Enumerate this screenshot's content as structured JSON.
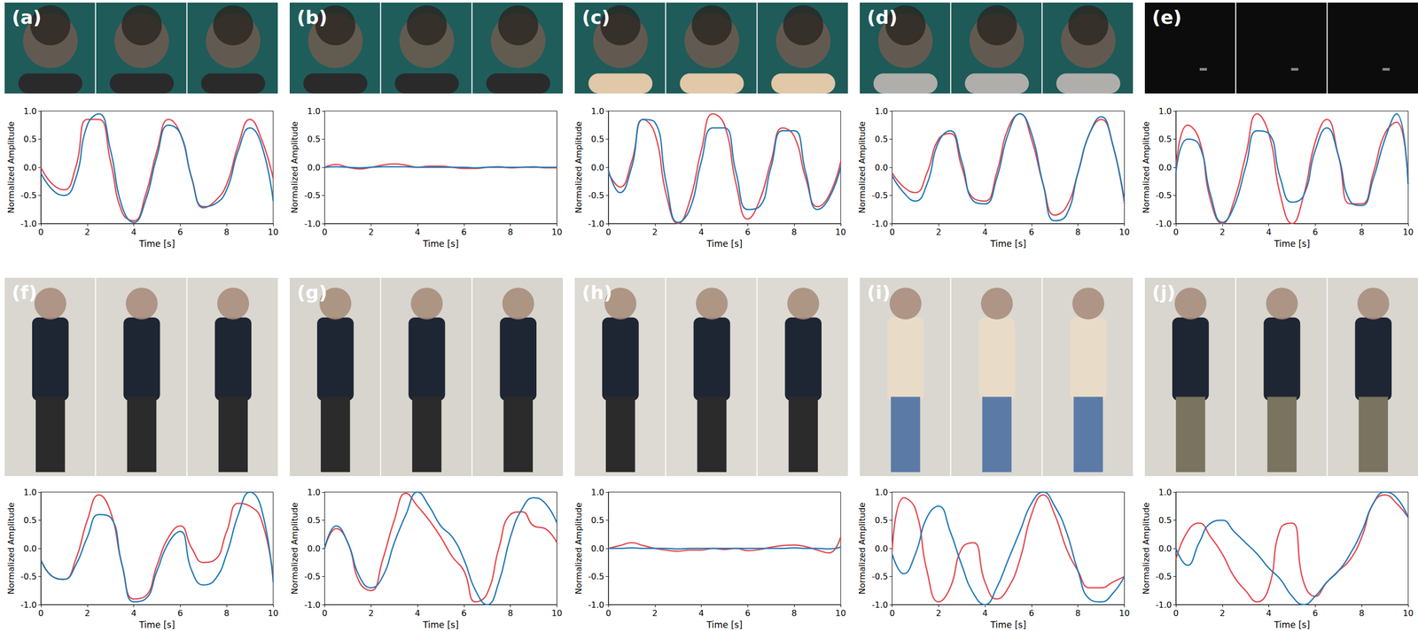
{
  "chart_data": [
    {
      "type": "line",
      "title": "(a)",
      "x_label": "Time [s]",
      "y_label": "Normalized Amplitude",
      "grid": false,
      "x": [
        0,
        0.5,
        1,
        1.5,
        2,
        2.5,
        3,
        3.5,
        4,
        4.5,
        5,
        5.5,
        6,
        6.5,
        7,
        7.5,
        8,
        8.5,
        9,
        9.5,
        10
      ],
      "xlim": [
        0,
        10
      ],
      "xticks": [
        0,
        2,
        4,
        6,
        8,
        10
      ],
      "ylim": [
        -1,
        1
      ],
      "yticks": [
        {
          "value": -1,
          "label": "-1.0"
        },
        {
          "value": -0.5,
          "label": "-0.5"
        },
        {
          "value": 0,
          "label": "0.0"
        },
        {
          "value": 0.5,
          "label": "0.5"
        },
        {
          "value": 1,
          "label": "1.0"
        }
      ],
      "series": [
        {
          "color": "#e4454b",
          "values": [
            0.0,
            -0.3,
            -0.4,
            0.0,
            0.85,
            0.85,
            0.1,
            -0.8,
            -0.95,
            -0.5,
            0.3,
            0.85,
            0.6,
            -0.2,
            -0.72,
            -0.6,
            -0.3,
            0.4,
            0.85,
            0.5,
            -0.2
          ]
        },
        {
          "color": "#1f77b4",
          "values": [
            -0.1,
            -0.4,
            -0.5,
            -0.2,
            0.75,
            0.95,
            0.3,
            -0.7,
            -0.98,
            -0.6,
            0.2,
            0.75,
            0.6,
            -0.2,
            -0.7,
            -0.65,
            -0.4,
            0.3,
            0.7,
            0.4,
            -0.6
          ]
        }
      ]
    },
    {
      "type": "line",
      "title": "(b)",
      "x_label": "Time [s]",
      "y_label": "Normalized Amplitude",
      "grid": false,
      "x": [
        0,
        0.5,
        1,
        1.5,
        2,
        2.5,
        3,
        3.5,
        4,
        4.5,
        5,
        5.5,
        6,
        6.5,
        7,
        7.5,
        8,
        8.5,
        9,
        9.5,
        10
      ],
      "xlim": [
        0,
        10
      ],
      "xticks": [
        0,
        2,
        4,
        6,
        8,
        10
      ],
      "ylim": [
        -1,
        1
      ],
      "yticks": [
        {
          "value": -1,
          "label": "-1.0"
        },
        {
          "value": -0.5,
          "label": "-0.5"
        },
        {
          "value": 0,
          "label": "0.0"
        },
        {
          "value": 0.5,
          "label": "0.5"
        },
        {
          "value": 1,
          "label": "1.0"
        }
      ],
      "series": [
        {
          "color": "#e4454b",
          "values": [
            0.0,
            0.05,
            0.0,
            -0.03,
            0.0,
            0.04,
            0.06,
            0.04,
            0.0,
            0.02,
            0.02,
            0.0,
            -0.02,
            -0.02,
            0.0,
            0.01,
            -0.01,
            0.0,
            0.01,
            -0.01,
            -0.01
          ]
        },
        {
          "color": "#1f77b4",
          "values": [
            0.0,
            0.01,
            0.0,
            -0.01,
            0.0,
            0.01,
            0.01,
            0.01,
            0.0,
            0.0,
            0.0,
            0.0,
            0.0,
            -0.01,
            0.0,
            0.0,
            0.0,
            0.0,
            0.0,
            0.0,
            0.0
          ]
        }
      ]
    },
    {
      "type": "line",
      "title": "(c)",
      "x_label": "Time [s]",
      "y_label": "Normalized Amplitude",
      "grid": false,
      "x": [
        0,
        0.5,
        1,
        1.5,
        2,
        2.5,
        3,
        3.5,
        4,
        4.5,
        5,
        5.5,
        6,
        6.5,
        7,
        7.5,
        8,
        8.5,
        9,
        9.5,
        10
      ],
      "xlim": [
        0,
        10
      ],
      "xticks": [
        0,
        2,
        4,
        6,
        8,
        10
      ],
      "ylim": [
        -1,
        1
      ],
      "yticks": [
        {
          "value": -1,
          "label": "-1.0"
        },
        {
          "value": -0.5,
          "label": "-0.5"
        },
        {
          "value": 0,
          "label": "0.0"
        },
        {
          "value": 0.5,
          "label": "0.5"
        },
        {
          "value": 1,
          "label": "1.0"
        }
      ],
      "series": [
        {
          "color": "#e4454b",
          "values": [
            -0.1,
            -0.35,
            0.1,
            0.85,
            0.6,
            -0.5,
            -1.0,
            -0.6,
            0.3,
            0.95,
            0.75,
            -0.3,
            -0.92,
            -0.6,
            0.1,
            0.7,
            0.55,
            -0.2,
            -0.7,
            -0.5,
            0.1
          ]
        },
        {
          "color": "#1f77b4",
          "values": [
            -0.05,
            -0.45,
            0.0,
            0.85,
            0.8,
            -0.3,
            -0.98,
            -0.75,
            0.1,
            0.7,
            0.7,
            -0.1,
            -0.75,
            -0.7,
            0.0,
            0.65,
            0.65,
            -0.1,
            -0.75,
            -0.55,
            0.0
          ]
        }
      ]
    },
    {
      "type": "line",
      "title": "(d)",
      "x_label": "Time [s]",
      "y_label": "Normalized Amplitude",
      "grid": false,
      "x": [
        0,
        0.5,
        1,
        1.5,
        2,
        2.5,
        3,
        3.5,
        4,
        4.5,
        5,
        5.5,
        6,
        6.5,
        7,
        7.5,
        8,
        8.5,
        9,
        9.5,
        10
      ],
      "xlim": [
        0,
        10
      ],
      "xticks": [
        0,
        2,
        4,
        6,
        8,
        10
      ],
      "ylim": [
        -1,
        1
      ],
      "yticks": [
        {
          "value": -1,
          "label": "-1.0"
        },
        {
          "value": -0.5,
          "label": "-0.5"
        },
        {
          "value": 0,
          "label": "0.0"
        },
        {
          "value": 0.5,
          "label": "0.5"
        },
        {
          "value": 1,
          "label": "1.0"
        }
      ],
      "series": [
        {
          "color": "#e4454b",
          "values": [
            -0.1,
            -0.35,
            -0.45,
            -0.1,
            0.5,
            0.6,
            0.0,
            -0.55,
            -0.6,
            -0.1,
            0.7,
            0.95,
            0.5,
            -0.3,
            -0.85,
            -0.7,
            -0.1,
            0.6,
            0.85,
            0.4,
            -0.65
          ]
        },
        {
          "color": "#1f77b4",
          "values": [
            -0.15,
            -0.45,
            -0.6,
            -0.3,
            0.45,
            0.65,
            0.1,
            -0.6,
            -0.65,
            -0.2,
            0.6,
            0.95,
            0.6,
            -0.3,
            -0.95,
            -0.85,
            -0.1,
            0.6,
            0.9,
            0.4,
            -0.6
          ]
        }
      ]
    },
    {
      "type": "line",
      "title": "(e)",
      "x_label": "Time [s]",
      "y_label": "Normalized Amplitude",
      "grid": false,
      "x": [
        0,
        0.5,
        1,
        1.5,
        2,
        2.5,
        3,
        3.5,
        4,
        4.5,
        5,
        5.5,
        6,
        6.5,
        7,
        7.5,
        8,
        8.5,
        9,
        9.5,
        10
      ],
      "xlim": [
        0,
        10
      ],
      "xticks": [
        0,
        2,
        4,
        6,
        8,
        10
      ],
      "ylim": [
        -1,
        1
      ],
      "yticks": [
        {
          "value": -1,
          "label": "-1.0"
        },
        {
          "value": -0.5,
          "label": "-0.5"
        },
        {
          "value": 0,
          "label": "0.0"
        },
        {
          "value": 0.5,
          "label": "0.5"
        },
        {
          "value": 1,
          "label": "1.0"
        }
      ],
      "series": [
        {
          "color": "#e4454b",
          "values": [
            0.0,
            0.75,
            0.5,
            -0.6,
            -1.0,
            -0.6,
            0.2,
            0.95,
            0.6,
            -0.5,
            -1.0,
            -0.5,
            0.45,
            0.85,
            0.2,
            -0.65,
            -0.65,
            -0.1,
            0.6,
            0.8,
            -0.3
          ]
        },
        {
          "color": "#1f77b4",
          "values": [
            -0.1,
            0.5,
            0.4,
            -0.5,
            -0.98,
            -0.7,
            0.0,
            0.65,
            0.6,
            -0.2,
            -0.62,
            -0.5,
            0.3,
            0.7,
            0.2,
            -0.6,
            -0.68,
            -0.2,
            0.5,
            0.95,
            -0.3
          ]
        }
      ]
    },
    {
      "type": "line",
      "title": "(f)",
      "x_label": "Time [s]",
      "y_label": "Normalized Amplitude",
      "grid": false,
      "x": [
        0,
        0.5,
        1,
        1.5,
        2,
        2.5,
        3,
        3.5,
        4,
        4.5,
        5,
        5.5,
        6,
        6.5,
        7,
        7.5,
        8,
        8.5,
        9,
        9.5,
        10
      ],
      "xlim": [
        0,
        10
      ],
      "xticks": [
        0,
        2,
        4,
        6,
        8,
        10
      ],
      "ylim": [
        -1,
        1
      ],
      "yticks": [
        {
          "value": -1,
          "label": "-1.0"
        },
        {
          "value": -0.5,
          "label": "-0.5"
        },
        {
          "value": 0,
          "label": "0.0"
        },
        {
          "value": 0.5,
          "label": "0.5"
        },
        {
          "value": 1,
          "label": "1.0"
        }
      ],
      "series": [
        {
          "color": "#e4454b",
          "values": [
            -0.2,
            -0.5,
            -0.55,
            -0.2,
            0.5,
            0.95,
            0.65,
            -0.3,
            -0.9,
            -0.85,
            -0.3,
            0.2,
            0.4,
            0.0,
            -0.25,
            -0.2,
            0.3,
            0.8,
            0.75,
            0.5,
            -0.5
          ]
        },
        {
          "color": "#1f77b4",
          "values": [
            -0.2,
            -0.5,
            -0.55,
            -0.3,
            0.2,
            0.6,
            0.55,
            -0.3,
            -0.95,
            -0.9,
            -0.4,
            0.1,
            0.3,
            -0.4,
            -0.65,
            -0.55,
            -0.1,
            0.6,
            1.0,
            0.7,
            -0.6
          ]
        }
      ]
    },
    {
      "type": "line",
      "title": "(g)",
      "x_label": "Time [s]",
      "y_label": "Normalized Amplitude",
      "grid": false,
      "x": [
        0,
        0.5,
        1,
        1.5,
        2,
        2.5,
        3,
        3.5,
        4,
        4.5,
        5,
        5.5,
        6,
        6.5,
        7,
        7.5,
        8,
        8.5,
        9,
        9.5,
        10
      ],
      "xlim": [
        0,
        10
      ],
      "xticks": [
        0,
        2,
        4,
        6,
        8,
        10
      ],
      "ylim": [
        -1,
        1
      ],
      "yticks": [
        {
          "value": -1,
          "label": "-1.0"
        },
        {
          "value": -0.5,
          "label": "-0.5"
        },
        {
          "value": 0,
          "label": "0.0"
        },
        {
          "value": 0.5,
          "label": "0.5"
        },
        {
          "value": 1,
          "label": "1.0"
        }
      ],
      "series": [
        {
          "color": "#e4454b",
          "values": [
            0.0,
            0.35,
            0.1,
            -0.6,
            -0.75,
            -0.2,
            0.5,
            0.98,
            0.75,
            0.5,
            0.2,
            -0.15,
            -0.4,
            -0.95,
            -0.8,
            0.0,
            0.6,
            0.65,
            0.4,
            0.35,
            0.1
          ]
        },
        {
          "color": "#1f77b4",
          "values": [
            0.0,
            0.4,
            0.1,
            -0.5,
            -0.7,
            -0.5,
            0.1,
            0.6,
            1.0,
            0.75,
            0.4,
            0.2,
            -0.2,
            -0.75,
            -1.0,
            -0.6,
            0.2,
            0.7,
            0.9,
            0.8,
            0.45
          ]
        }
      ]
    },
    {
      "type": "line",
      "title": "(h)",
      "x_label": "Time [s]",
      "y_label": "Normalized Amplitude",
      "grid": false,
      "x": [
        0,
        0.5,
        1,
        1.5,
        2,
        2.5,
        3,
        3.5,
        4,
        4.5,
        5,
        5.5,
        6,
        6.5,
        7,
        7.5,
        8,
        8.5,
        9,
        9.5,
        10
      ],
      "xlim": [
        0,
        10
      ],
      "xticks": [
        0,
        2,
        4,
        6,
        8,
        10
      ],
      "ylim": [
        -1,
        1
      ],
      "yticks": [
        {
          "value": -1,
          "label": "-1.0"
        },
        {
          "value": -0.5,
          "label": "-0.5"
        },
        {
          "value": 0,
          "label": "0.0"
        },
        {
          "value": 0.5,
          "label": "0.5"
        },
        {
          "value": 1,
          "label": "1.0"
        }
      ],
      "series": [
        {
          "color": "#e4454b",
          "values": [
            0.0,
            0.05,
            0.1,
            0.05,
            0.0,
            -0.03,
            -0.05,
            -0.03,
            -0.03,
            0.0,
            -0.02,
            0.0,
            -0.04,
            -0.02,
            0.02,
            0.05,
            0.06,
            0.03,
            -0.03,
            -0.08,
            0.2
          ]
        },
        {
          "color": "#1f77b4",
          "values": [
            0.0,
            0.0,
            0.01,
            0.0,
            0.0,
            0.0,
            -0.01,
            0.0,
            0.0,
            0.0,
            0.0,
            0.0,
            0.0,
            0.0,
            0.0,
            0.0,
            0.01,
            0.0,
            0.0,
            -0.01,
            0.02
          ]
        }
      ]
    },
    {
      "type": "line",
      "title": "(i)",
      "x_label": "Time [s]",
      "y_label": "Normalized Amplitude",
      "grid": false,
      "x": [
        0,
        0.5,
        1,
        1.5,
        2,
        2.5,
        3,
        3.5,
        4,
        4.5,
        5,
        5.5,
        6,
        6.5,
        7,
        7.5,
        8,
        8.5,
        9,
        9.5,
        10
      ],
      "xlim": [
        0,
        10
      ],
      "xticks": [
        0,
        2,
        4,
        6,
        8,
        10
      ],
      "ylim": [
        -1,
        1
      ],
      "yticks": [
        {
          "value": -1,
          "label": "-1.0"
        },
        {
          "value": -0.5,
          "label": "-0.5"
        },
        {
          "value": 0,
          "label": "0.0"
        },
        {
          "value": 0.5,
          "label": "0.5"
        },
        {
          "value": 1,
          "label": "1.0"
        }
      ],
      "series": [
        {
          "color": "#e4454b",
          "values": [
            -0.05,
            0.9,
            0.7,
            -0.4,
            -0.95,
            -0.7,
            0.0,
            0.1,
            -0.6,
            -0.9,
            -0.7,
            -0.2,
            0.6,
            0.95,
            0.6,
            0.0,
            -0.4,
            -0.7,
            -0.7,
            -0.6,
            -0.5
          ]
        },
        {
          "color": "#1f77b4",
          "values": [
            -0.1,
            -0.45,
            -0.1,
            0.55,
            0.75,
            0.3,
            -0.3,
            -0.8,
            -1.0,
            -0.7,
            -0.2,
            0.3,
            0.8,
            1.0,
            0.75,
            0.3,
            -0.4,
            -0.9,
            -0.95,
            -0.8,
            -0.5
          ]
        }
      ]
    },
    {
      "type": "line",
      "title": "(j)",
      "x_label": "Time [s]",
      "y_label": "Normalized Amplitude",
      "grid": false,
      "x": [
        0,
        0.5,
        1,
        1.5,
        2,
        2.5,
        3,
        3.5,
        4,
        4.5,
        5,
        5.5,
        6,
        6.5,
        7,
        7.5,
        8,
        8.5,
        9,
        9.5,
        10
      ],
      "xlim": [
        0,
        10
      ],
      "xticks": [
        0,
        2,
        4,
        6,
        8,
        10
      ],
      "ylim": [
        -1,
        1
      ],
      "yticks": [
        {
          "value": -1,
          "label": "-1.0"
        },
        {
          "value": -0.5,
          "label": "-0.5"
        },
        {
          "value": 0,
          "label": "0.0"
        },
        {
          "value": 0.5,
          "label": "0.5"
        },
        {
          "value": 1,
          "label": "1.0"
        }
      ],
      "series": [
        {
          "color": "#e4454b",
          "values": [
            -0.2,
            0.3,
            0.45,
            0.2,
            -0.1,
            -0.5,
            -0.75,
            -0.95,
            -0.7,
            0.35,
            0.45,
            -0.6,
            -0.85,
            -0.6,
            -0.4,
            -0.2,
            0.2,
            0.8,
            0.95,
            0.8,
            0.55
          ]
        },
        {
          "color": "#1f77b4",
          "values": [
            0.0,
            -0.3,
            0.1,
            0.45,
            0.5,
            0.3,
            0.1,
            -0.1,
            -0.35,
            -0.55,
            -0.85,
            -1.0,
            -0.85,
            -0.6,
            -0.4,
            -0.1,
            0.3,
            0.8,
            1.0,
            0.9,
            0.55
          ]
        }
      ]
    }
  ]
}
